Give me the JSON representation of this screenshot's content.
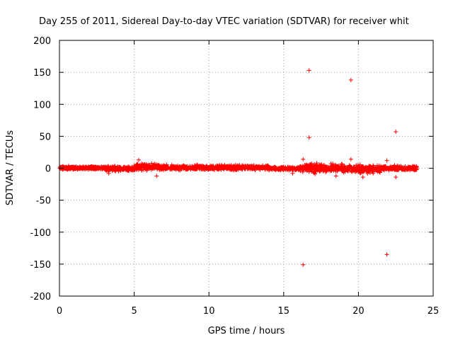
{
  "chart_data": {
    "type": "scatter",
    "title": "Day 255 of 2011, Sidereal Day-to-day VTEC variation (SDTVAR) for receiver whit",
    "xlabel": "GPS time / hours",
    "ylabel": "SDTVAR / TECUs",
    "xlim": [
      0,
      25
    ],
    "ylim": [
      -200,
      200
    ],
    "xticks": [
      0,
      5,
      10,
      15,
      20,
      25
    ],
    "yticks": [
      -200,
      -150,
      -100,
      -50,
      0,
      50,
      100,
      150,
      200
    ],
    "xtick_labels": [
      "0",
      "5",
      "10",
      "15",
      "20",
      "25"
    ],
    "ytick_labels": [
      "-200",
      "-150",
      "-100",
      "-50",
      "0",
      "50",
      "100",
      "150",
      "200"
    ],
    "grid": true,
    "marker": "+",
    "series_color": "#ff0000",
    "series": [
      {
        "name": "SDTVAR",
        "dense_band": [
          {
            "x_start": 0.0,
            "x_end": 3.0,
            "y_min": -3,
            "y_max": 4
          },
          {
            "x_start": 3.0,
            "x_end": 5.0,
            "y_min": -6,
            "y_max": 5
          },
          {
            "x_start": 5.0,
            "x_end": 7.0,
            "y_min": -5,
            "y_max": 9
          },
          {
            "x_start": 7.0,
            "x_end": 10.0,
            "y_min": -4,
            "y_max": 6
          },
          {
            "x_start": 10.0,
            "x_end": 14.0,
            "y_min": -4,
            "y_max": 6
          },
          {
            "x_start": 14.0,
            "x_end": 16.0,
            "y_min": -4,
            "y_max": 3
          },
          {
            "x_start": 16.0,
            "x_end": 19.0,
            "y_min": -8,
            "y_max": 9
          },
          {
            "x_start": 19.0,
            "x_end": 21.5,
            "y_min": -10,
            "y_max": 8
          },
          {
            "x_start": 21.5,
            "x_end": 23.9,
            "y_min": -5,
            "y_max": 5
          }
        ],
        "outliers": [
          {
            "x": 16.7,
            "y": 153
          },
          {
            "x": 19.5,
            "y": 138
          },
          {
            "x": 22.5,
            "y": 57
          },
          {
            "x": 16.7,
            "y": 48
          },
          {
            "x": 21.9,
            "y": -135
          },
          {
            "x": 16.3,
            "y": -151
          },
          {
            "x": 6.5,
            "y": -12
          },
          {
            "x": 22.5,
            "y": -14
          },
          {
            "x": 19.5,
            "y": 14
          },
          {
            "x": 21.9,
            "y": 12
          },
          {
            "x": 5.3,
            "y": 13
          },
          {
            "x": 16.3,
            "y": 14
          },
          {
            "x": 18.5,
            "y": -12
          },
          {
            "x": 20.3,
            "y": -14
          },
          {
            "x": 15.6,
            "y": -8
          },
          {
            "x": 17.1,
            "y": -9
          },
          {
            "x": 3.3,
            "y": -8
          }
        ]
      }
    ]
  }
}
